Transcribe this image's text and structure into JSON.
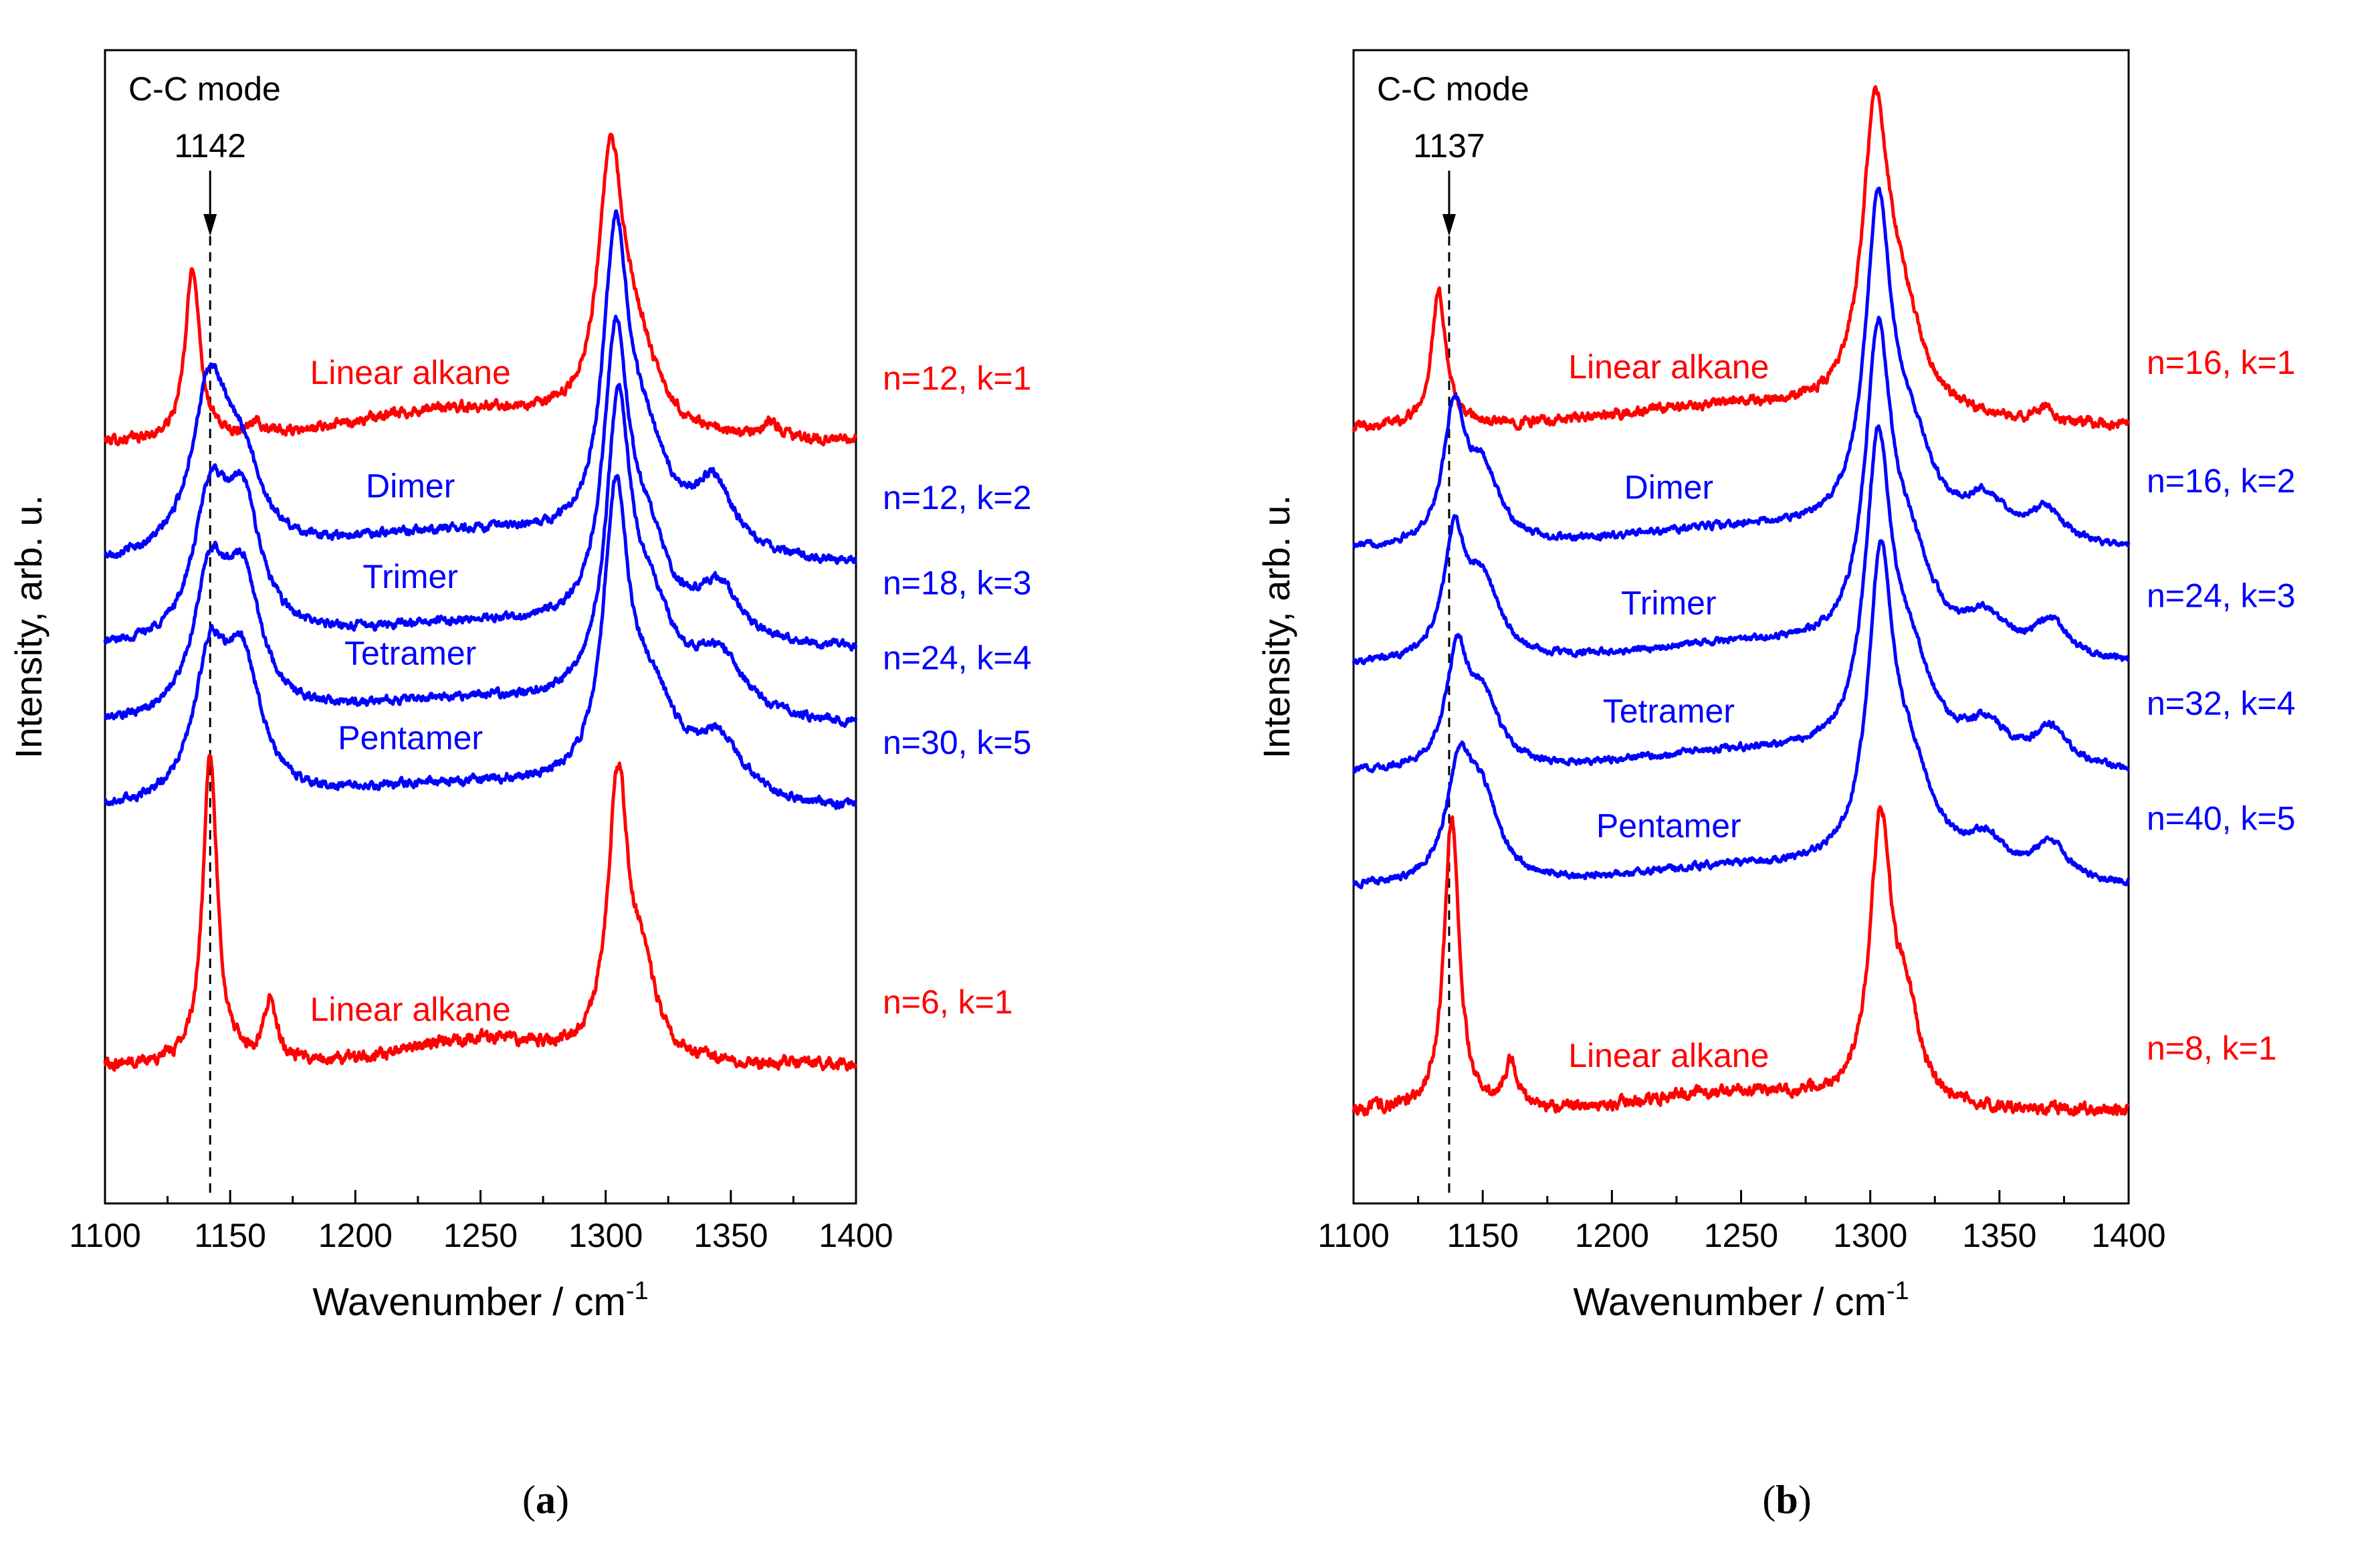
{
  "chart_data": [
    {
      "type": "line",
      "panel_label": "(a)",
      "panel_letter": "a",
      "xlabel": "Wavenumber / cm",
      "xlabel_superscript": "-1",
      "ylabel": "Intensity, arb. u.",
      "xlim": [
        1100,
        1400
      ],
      "xticks": [
        "1100",
        "1150",
        "1200",
        "1250",
        "1300",
        "1350",
        "1400"
      ],
      "annotation": {
        "title": "C-C mode",
        "value": "1142",
        "x": 1142
      },
      "legend": "none",
      "grid": false,
      "colors": {
        "alkane": "#ff0000",
        "oligomer": "#0000ff"
      },
      "series": [
        {
          "name": "Linear alkane",
          "label": "n=12, k=1",
          "color": "#ff0000",
          "baseline": 0.57,
          "amp": 0.41,
          "noise": 0.012,
          "peaks": [
            [
              1135,
              3.5,
              0.55
            ],
            [
              1160,
              3,
              0.05
            ],
            [
              1302,
              6.0,
              0.8
            ],
            [
              1312,
              10,
              0.25
            ],
            [
              1366,
              4,
              0.05
            ]
          ],
          "bumps": [
            [
              1242,
              60,
              0.1
            ]
          ]
        },
        {
          "name": "Dimer",
          "label": "n=12, k=2",
          "color": "#0000ff",
          "baseline": 0.41,
          "amp": 0.4,
          "noise": 0.01,
          "peaks": [
            [
              1142,
              9,
              0.55
            ],
            [
              1155,
              9,
              0.25
            ],
            [
              1304,
              6.0,
              0.95
            ],
            [
              1316,
              11,
              0.3
            ],
            [
              1343,
              10,
              0.22
            ]
          ],
          "bumps": [
            [
              1240,
              70,
              0.1
            ]
          ]
        },
        {
          "name": "Trimer",
          "label": "n=18, k=3",
          "color": "#0000ff",
          "baseline": 0.3,
          "amp": 0.38,
          "noise": 0.01,
          "peaks": [
            [
              1142,
              8,
              0.45
            ],
            [
              1155,
              9,
              0.45
            ],
            [
              1304,
              6.0,
              0.95
            ],
            [
              1316,
              11,
              0.3
            ],
            [
              1345,
              10,
              0.18
            ]
          ],
          "bumps": [
            [
              1245,
              70,
              0.08
            ]
          ]
        },
        {
          "name": "Tetramer",
          "label": "n=24, k=4",
          "color": "#0000ff",
          "baseline": 0.2,
          "amp": 0.38,
          "noise": 0.01,
          "peaks": [
            [
              1142,
              8,
              0.45
            ],
            [
              1155,
              9,
              0.45
            ],
            [
              1305,
              6.0,
              0.95
            ],
            [
              1318,
              12,
              0.32
            ],
            [
              1345,
              12,
              0.2
            ]
          ],
          "bumps": [
            [
              1245,
              70,
              0.08
            ]
          ]
        },
        {
          "name": "Pentamer",
          "label": "n=30, k=5",
          "color": "#0000ff",
          "baseline": 0.09,
          "amp": 0.38,
          "noise": 0.01,
          "peaks": [
            [
              1142,
              8,
              0.45
            ],
            [
              1155,
              9,
              0.45
            ],
            [
              1304,
              6.0,
              0.95
            ],
            [
              1318,
              12,
              0.32
            ],
            [
              1345,
              12,
              0.2
            ]
          ],
          "bumps": [
            [
              1245,
              70,
              0.08
            ]
          ]
        },
        {
          "name": "Linear alkane",
          "label": "n=6, k=1",
          "color": "#ff0000",
          "baseline": -0.24,
          "amp": 0.4,
          "noise": 0.014,
          "peaks": [
            [
              1142,
              3.5,
              1.0
            ],
            [
              1166,
              3,
              0.2
            ],
            [
              1305,
              5.0,
              0.9
            ],
            [
              1315,
              6,
              0.25
            ]
          ],
          "bumps": [
            [
              1250,
              40,
              0.08
            ]
          ]
        }
      ]
    },
    {
      "type": "line",
      "panel_label": "(b)",
      "panel_letter": "b",
      "xlabel": "Wavenumber / cm",
      "xlabel_superscript": "-1",
      "ylabel": "Intensity, arb. u.",
      "xlim": [
        1100,
        1400
      ],
      "xticks": [
        "1100",
        "1150",
        "1200",
        "1250",
        "1300",
        "1350",
        "1400"
      ],
      "annotation": {
        "title": "C-C mode",
        "value": "1137",
        "x": 1137
      },
      "legend": "none",
      "grid": false,
      "colors": {
        "alkane": "#ff0000",
        "oligomer": "#0000ff"
      },
      "series": [
        {
          "name": "Linear alkane",
          "label": "n=16, k=1",
          "color": "#ff0000",
          "baseline": 0.59,
          "amp": 0.43,
          "noise": 0.012,
          "peaks": [
            [
              1133,
              3.5,
              0.4
            ],
            [
              1302,
              6.0,
              0.85
            ],
            [
              1312,
              10,
              0.28
            ],
            [
              1368,
              4,
              0.05
            ]
          ],
          "bumps": [
            [
              1250,
              60,
              0.06
            ]
          ]
        },
        {
          "name": "Dimer",
          "label": "n=16, k=2",
          "color": "#0000ff",
          "baseline": 0.43,
          "amp": 0.42,
          "noise": 0.008,
          "peaks": [
            [
              1139,
              5,
              0.4
            ],
            [
              1150,
              8,
              0.22
            ],
            [
              1303,
              6.0,
              0.95
            ],
            [
              1315,
              11,
              0.28
            ],
            [
              1345,
              10,
              0.12
            ],
            [
              1368,
              8,
              0.1
            ]
          ],
          "bumps": [
            [
              1250,
              60,
              0.06
            ]
          ]
        },
        {
          "name": "Trimer",
          "label": "n=24, k=3",
          "color": "#0000ff",
          "baseline": 0.28,
          "amp": 0.4,
          "noise": 0.008,
          "peaks": [
            [
              1139,
              5,
              0.38
            ],
            [
              1150,
              8,
              0.25
            ],
            [
              1303,
              6.0,
              0.95
            ],
            [
              1315,
              11,
              0.3
            ],
            [
              1345,
              10,
              0.12
            ],
            [
              1370,
              8,
              0.12
            ]
          ],
          "bumps": [
            [
              1250,
              60,
              0.06
            ]
          ]
        },
        {
          "name": "Tetramer",
          "label": "n=32, k=4",
          "color": "#0000ff",
          "baseline": 0.14,
          "amp": 0.4,
          "noise": 0.008,
          "peaks": [
            [
              1140,
              5,
              0.35
            ],
            [
              1150,
              8,
              0.22
            ],
            [
              1303,
              6.0,
              0.95
            ],
            [
              1315,
              11,
              0.3
            ],
            [
              1345,
              10,
              0.12
            ],
            [
              1370,
              8,
              0.12
            ]
          ],
          "bumps": [
            [
              1250,
              60,
              0.06
            ]
          ]
        },
        {
          "name": "Pentamer",
          "label": "n=40, k=5",
          "color": "#0000ff",
          "baseline": -0.01,
          "amp": 0.4,
          "noise": 0.008,
          "peaks": [
            [
              1141,
              6,
              0.35
            ],
            [
              1150,
              8,
              0.25
            ],
            [
              1304,
              6.0,
              0.95
            ],
            [
              1316,
              11,
              0.3
            ],
            [
              1345,
              10,
              0.12
            ],
            [
              1370,
              8,
              0.12
            ]
          ],
          "bumps": [
            [
              1250,
              60,
              0.06
            ]
          ]
        },
        {
          "name": "Linear alkane",
          "label": "n=8, k=1",
          "color": "#ff0000",
          "baseline": -0.3,
          "amp": 0.4,
          "noise": 0.014,
          "peaks": [
            [
              1138,
              3.5,
              0.95
            ],
            [
              1161,
              3,
              0.15
            ],
            [
              1304,
              5.0,
              0.9
            ],
            [
              1314,
              6,
              0.28
            ]
          ],
          "bumps": [
            [
              1250,
              45,
              0.06
            ]
          ]
        }
      ]
    }
  ]
}
